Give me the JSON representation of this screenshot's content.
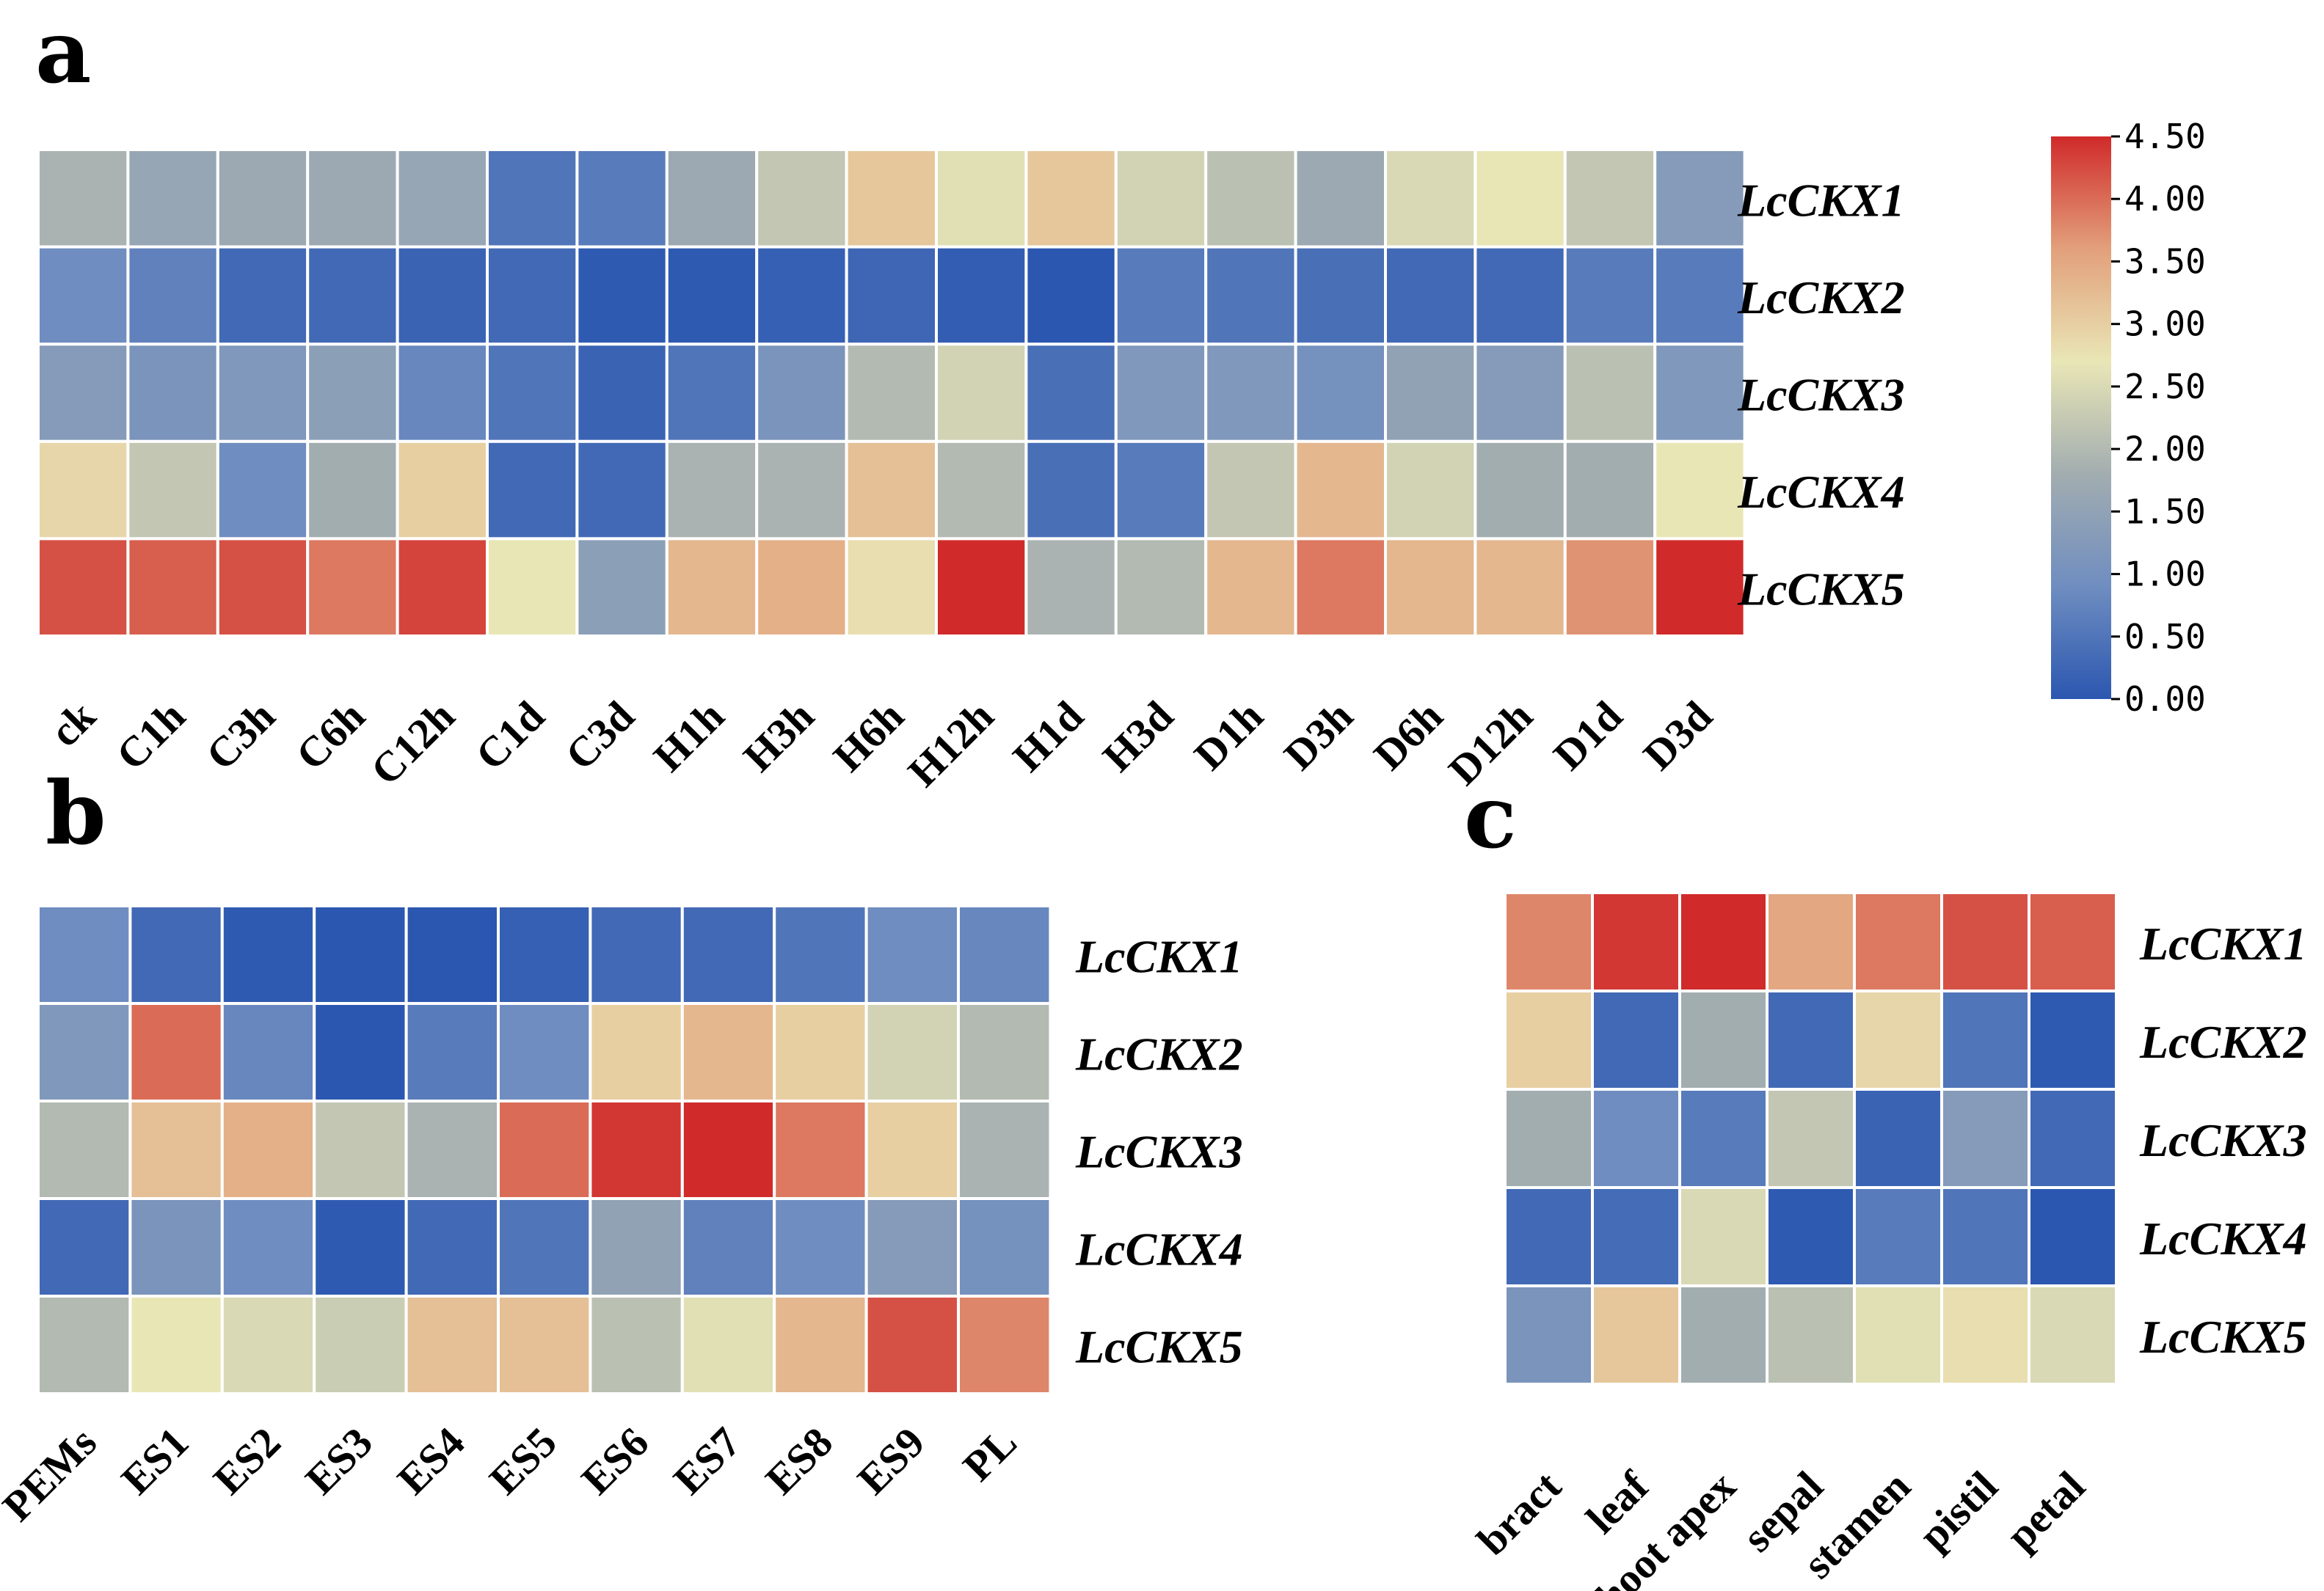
{
  "colorbar": {
    "min": 0,
    "max": 4.5,
    "ticks": [
      "0.00",
      "0.50",
      "1.00",
      "1.50",
      "2.00",
      "2.50",
      "3.00",
      "3.50",
      "4.00",
      "4.50"
    ],
    "colors": [
      "#2b57b0",
      "#6f8dc0",
      "#a2adb0",
      "#e9e6b6",
      "#e2a07b",
      "#d02a2a"
    ]
  },
  "chart_data": [
    {
      "type": "heatmap",
      "panel": "a",
      "rows": [
        "LcCKX1",
        "LcCKX2",
        "LcCKX3",
        "LcCKX4",
        "LcCKX5"
      ],
      "columns": [
        "ck",
        "C1h",
        "C3h",
        "C6h",
        "C12h",
        "C1d",
        "C3d",
        "H1h",
        "H3h",
        "H6h",
        "H12h",
        "H1d",
        "H3d",
        "D1h",
        "D3h",
        "D6h",
        "D12h",
        "D1d",
        "D3d"
      ],
      "values": [
        [
          1.9,
          1.6,
          1.7,
          1.7,
          1.6,
          0.5,
          0.6,
          1.7,
          2.2,
          3.1,
          2.6,
          3.1,
          2.4,
          2.1,
          1.7,
          2.5,
          2.7,
          2.2,
          1.3
        ],
        [
          0.9,
          0.7,
          0.3,
          0.3,
          0.2,
          0.3,
          0.05,
          0.05,
          0.15,
          0.25,
          0.1,
          0.0,
          0.6,
          0.5,
          0.4,
          0.3,
          0.3,
          0.6,
          0.6
        ],
        [
          1.3,
          1.1,
          1.2,
          1.4,
          0.8,
          0.5,
          0.2,
          0.5,
          1.1,
          2.0,
          2.4,
          0.4,
          1.2,
          1.2,
          1.0,
          1.5,
          1.3,
          2.1,
          1.2
        ],
        [
          2.9,
          2.2,
          0.9,
          1.8,
          3.0,
          0.3,
          0.3,
          1.9,
          1.9,
          3.2,
          2.0,
          0.4,
          0.6,
          2.2,
          3.3,
          2.4,
          1.8,
          1.8,
          2.7
        ],
        [
          4.2,
          4.1,
          4.2,
          3.9,
          4.3,
          2.7,
          1.4,
          3.3,
          3.4,
          2.8,
          4.5,
          1.9,
          2.0,
          3.3,
          3.9,
          3.3,
          3.3,
          3.7,
          4.5
        ]
      ]
    },
    {
      "type": "heatmap",
      "panel": "b",
      "rows": [
        "LcCKX1",
        "LcCKX2",
        "LcCKX3",
        "LcCKX4",
        "LcCKX5"
      ],
      "columns": [
        "PEMs",
        "ES1",
        "ES2",
        "ES3",
        "ES4",
        "ES5",
        "ES6",
        "ES7",
        "ES8",
        "ES9",
        "PL"
      ],
      "values": [
        [
          0.9,
          0.3,
          0.05,
          0.0,
          0.0,
          0.15,
          0.3,
          0.3,
          0.5,
          0.9,
          0.8
        ],
        [
          1.2,
          4.0,
          0.8,
          0.0,
          0.6,
          0.9,
          3.0,
          3.3,
          3.0,
          2.4,
          2.0
        ],
        [
          2.0,
          3.2,
          3.4,
          2.2,
          1.9,
          4.0,
          4.4,
          4.5,
          3.9,
          3.0,
          1.9
        ],
        [
          0.3,
          1.1,
          0.9,
          0.05,
          0.3,
          0.5,
          1.5,
          0.7,
          0.9,
          1.3,
          1.0
        ],
        [
          2.0,
          2.7,
          2.5,
          2.3,
          3.2,
          3.2,
          2.1,
          2.6,
          3.3,
          4.2,
          3.8
        ]
      ]
    },
    {
      "type": "heatmap",
      "panel": "c",
      "rows": [
        "LcCKX1",
        "LcCKX2",
        "LcCKX3",
        "LcCKX4",
        "LcCKX5"
      ],
      "columns": [
        "bract",
        "leaf",
        "shoot apex",
        "sepal",
        "stamen",
        "pistil",
        "petal"
      ],
      "values": [
        [
          3.8,
          4.4,
          4.5,
          3.5,
          3.9,
          4.2,
          4.1
        ],
        [
          3.0,
          0.3,
          1.8,
          0.3,
          2.9,
          0.5,
          0.05
        ],
        [
          1.8,
          0.9,
          0.6,
          2.2,
          0.2,
          1.3,
          0.3
        ],
        [
          0.3,
          0.35,
          2.5,
          0.05,
          0.6,
          0.5,
          0.0
        ],
        [
          1.1,
          3.1,
          1.8,
          2.1,
          2.6,
          2.8,
          2.5
        ]
      ]
    }
  ]
}
